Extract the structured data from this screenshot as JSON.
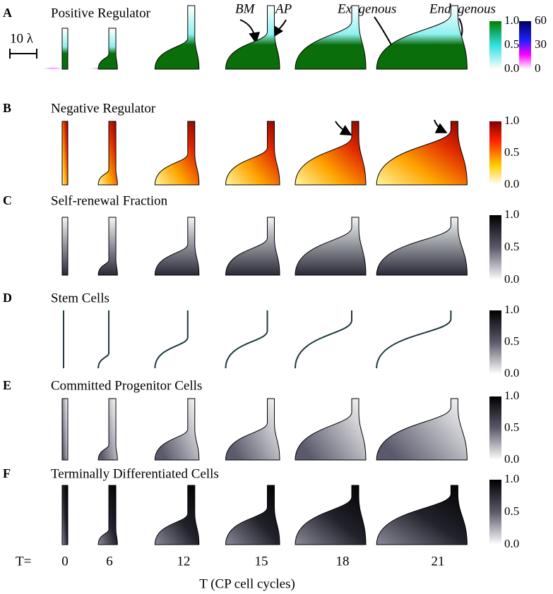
{
  "panels": [
    {
      "letter": "A",
      "title": "Positive Regulator",
      "colorbar_ticks": [
        "1.0",
        "0.5",
        "0.0"
      ],
      "colorbar2_ticks": [
        "60",
        "30",
        "0"
      ]
    },
    {
      "letter": "B",
      "title": "Negative Regulator",
      "colorbar_ticks": [
        "1.0",
        "0.5",
        "0.0"
      ]
    },
    {
      "letter": "C",
      "title": "Self-renewal Fraction",
      "colorbar_ticks": [
        "1.0",
        "0.5",
        "0.0"
      ]
    },
    {
      "letter": "D",
      "title": "Stem Cells",
      "colorbar_ticks": [
        "1.0",
        "0.5",
        "0.0"
      ]
    },
    {
      "letter": "E",
      "title": "Committed Progenitor Cells",
      "colorbar_ticks": [
        "1.0",
        "0.5",
        "0.0"
      ]
    },
    {
      "letter": "F",
      "title": "Terminally Differentiated Cells",
      "colorbar_ticks": [
        "1.0",
        "0.5",
        "0.0"
      ]
    }
  ],
  "annotations": {
    "scale": "10 λ",
    "bm": "BM",
    "ap": "AP",
    "exogenous": "Exogenous",
    "endogenous": "Endogenous"
  },
  "time": {
    "prefix": "T=",
    "values": [
      "0",
      "6",
      "12",
      "15",
      "18",
      "21"
    ]
  },
  "x_label": "T (CP cell cycles)"
}
